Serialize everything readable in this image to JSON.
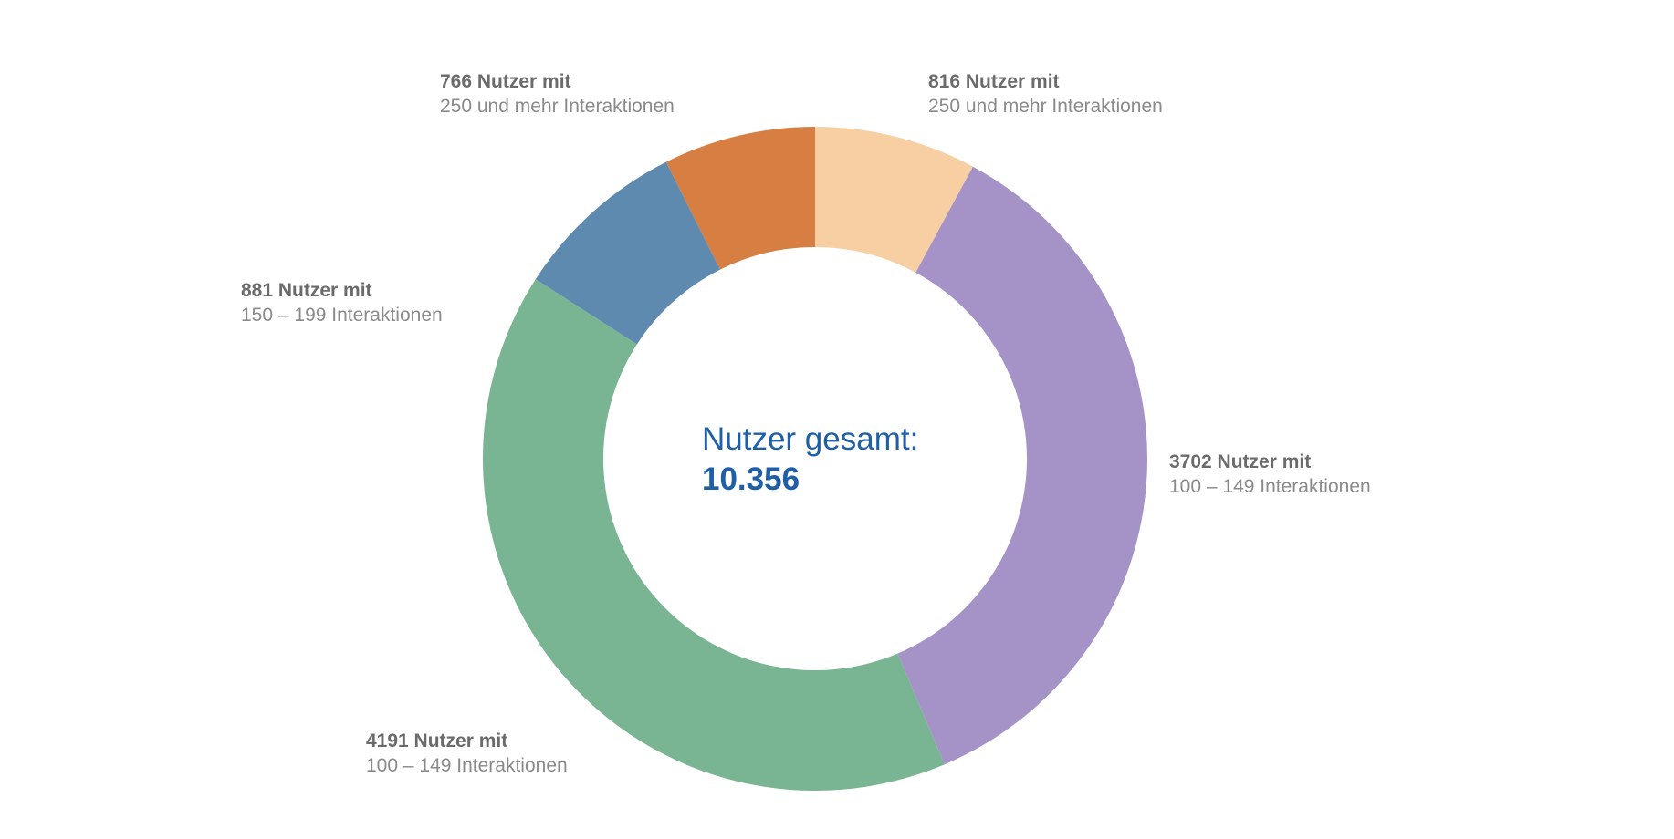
{
  "chart_data": {
    "type": "pie",
    "variant": "donut",
    "center": {
      "title": "Nutzer gesamt:",
      "value": "10.356"
    },
    "slices": [
      {
        "count": 816,
        "count_label": "816 Nutzer mit",
        "desc": "250 und mehr Interaktionen",
        "color": "#f8cfa3"
      },
      {
        "count": 3702,
        "count_label": "3702 Nutzer mit",
        "desc": "100 – 149 Interaktionen",
        "color": "#a592c7"
      },
      {
        "count": 4191,
        "count_label": "4191 Nutzer mit",
        "desc": "100 – 149 Interaktionen",
        "color": "#79b593"
      },
      {
        "count": 881,
        "count_label": "881 Nutzer mit",
        "desc": "150 – 199 Interaktionen",
        "color": "#5f8aaf"
      },
      {
        "count": 766,
        "count_label": "766 Nutzer mit",
        "desc": "250 und mehr Interaktionen",
        "color": "#d77e43"
      }
    ]
  }
}
